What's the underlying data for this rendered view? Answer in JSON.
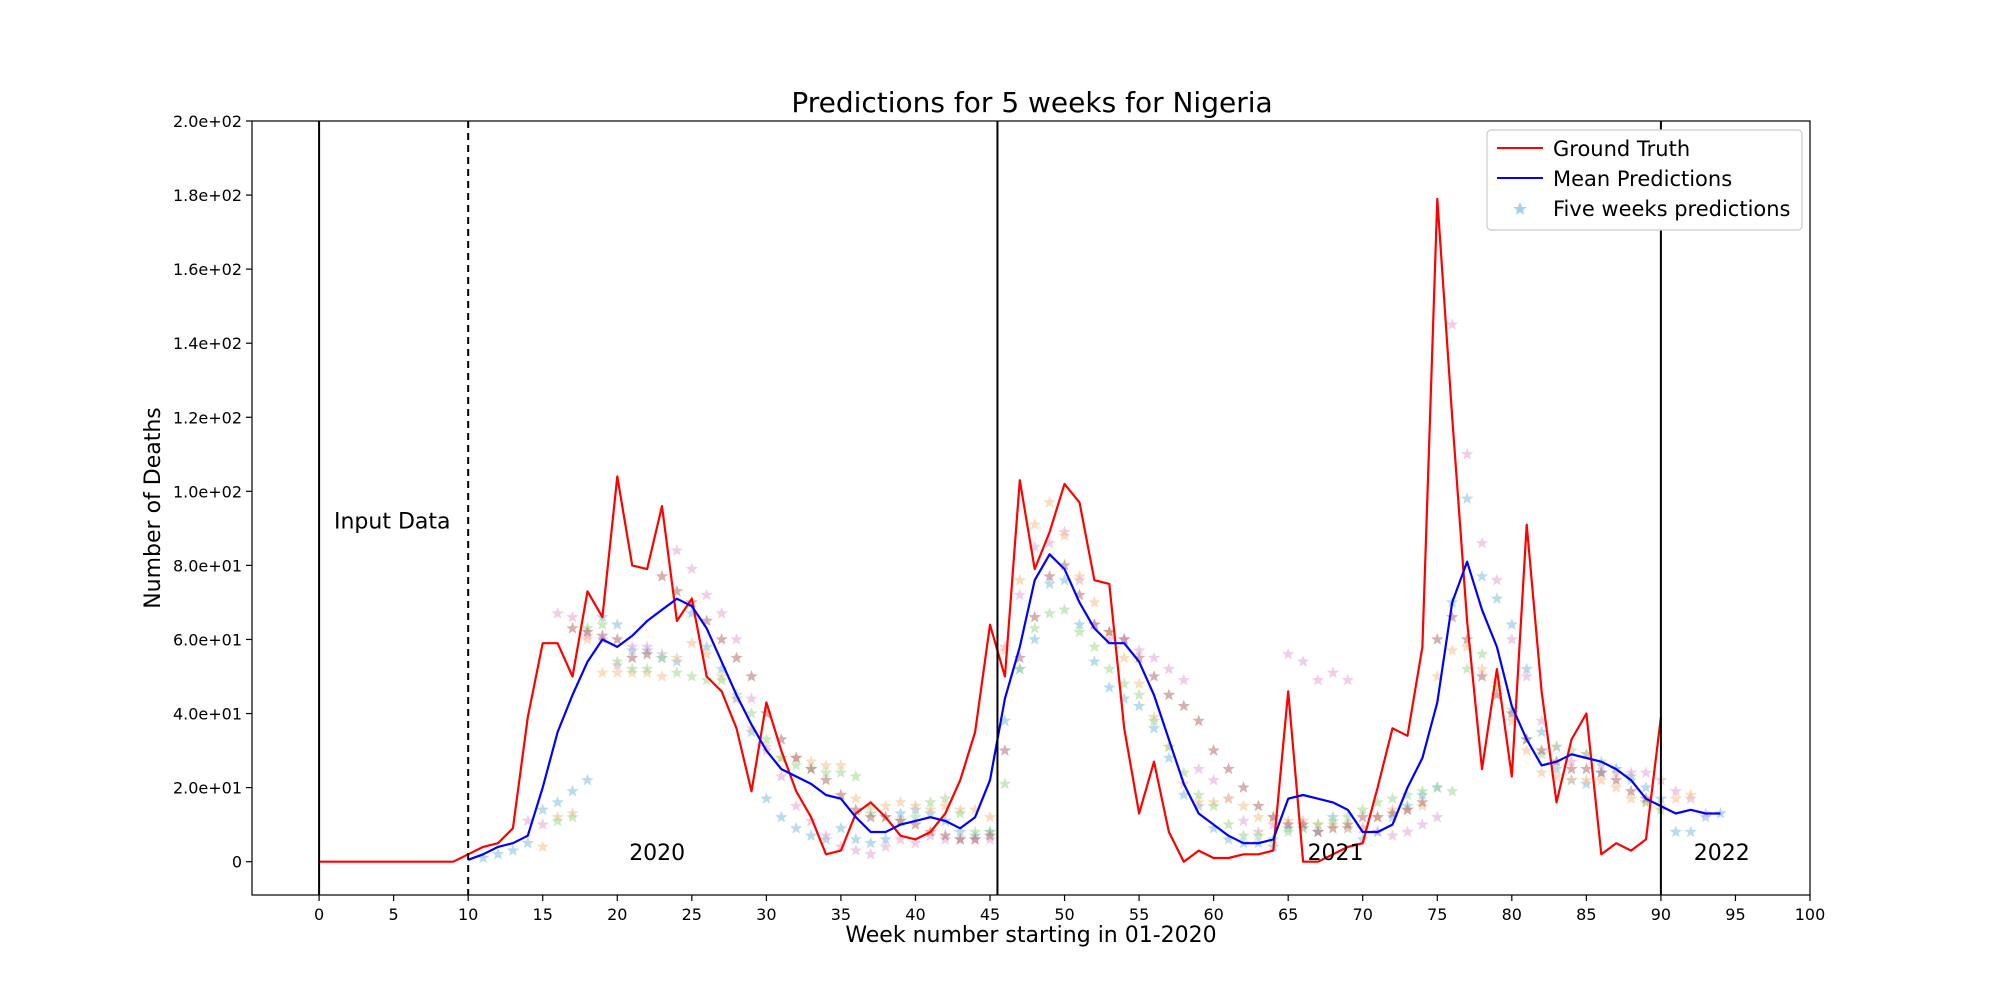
{
  "chart_data": {
    "type": "line",
    "title": "Predictions for 5 weeks for Nigeria",
    "xlabel": "Week number starting in 01-2020",
    "ylabel": "Number of Deaths",
    "xlim": [
      -4.5,
      100
    ],
    "ylim": [
      -9,
      200
    ],
    "xticks": [
      0,
      5,
      10,
      15,
      20,
      25,
      30,
      35,
      40,
      45,
      50,
      55,
      60,
      65,
      70,
      75,
      80,
      85,
      90,
      95,
      100
    ],
    "xtick_labels": [
      "0",
      "5",
      "10",
      "15",
      "20",
      "25",
      "30",
      "35",
      "40",
      "45",
      "50",
      "55",
      "60",
      "65",
      "70",
      "75",
      "80",
      "85",
      "90",
      "95",
      "100"
    ],
    "yticks": [
      0,
      20,
      40,
      60,
      80,
      100,
      120,
      140,
      160,
      180,
      200
    ],
    "ytick_labels": [
      "0",
      "2.0e+01",
      "4.0e+01",
      "6.0e+01",
      "8.0e+01",
      "1.0e+02",
      "1.2e+02",
      "1.4e+02",
      "1.6e+02",
      "1.8e+02",
      "2.0e+02"
    ],
    "grid": false,
    "legend_position": "top-right",
    "vertical_lines": [
      {
        "x": 0,
        "style": "solid"
      },
      {
        "x": 10,
        "style": "dashed"
      },
      {
        "x": 45.5,
        "style": "solid"
      },
      {
        "x": 90,
        "style": "solid"
      }
    ],
    "annotations": [
      {
        "text": "Input Data",
        "x": 1,
        "y": 90
      },
      {
        "text": "2020",
        "x": 20.8,
        "y": 0.5
      },
      {
        "text": "2021",
        "x": 66.3,
        "y": 0.5
      },
      {
        "text": "2022",
        "x": 92.2,
        "y": 0.5
      }
    ],
    "series": [
      {
        "name": "Ground Truth",
        "color": "#ff0000",
        "kind": "line",
        "x": [
          0,
          1,
          2,
          3,
          4,
          5,
          6,
          7,
          8,
          9,
          10,
          11,
          12,
          13,
          14,
          15,
          16,
          17,
          18,
          19,
          20,
          21,
          22,
          23,
          24,
          25,
          26,
          27,
          28,
          29,
          30,
          31,
          32,
          33,
          34,
          35,
          36,
          37,
          38,
          39,
          40,
          41,
          42,
          43,
          44,
          45,
          46,
          47,
          48,
          49,
          50,
          51,
          52,
          53,
          54,
          55,
          56,
          57,
          58,
          59,
          60,
          61,
          62,
          63,
          64,
          65,
          66,
          67,
          68,
          69,
          70,
          71,
          72,
          73,
          74,
          75,
          76,
          77,
          78,
          79,
          80,
          81,
          82,
          83,
          84,
          85,
          86,
          87,
          88,
          89,
          90
        ],
        "y": [
          0,
          0,
          0,
          0,
          0,
          0,
          0,
          0,
          0,
          0,
          2,
          4,
          5,
          9,
          39,
          59,
          59,
          50,
          73,
          66,
          104,
          80,
          79,
          96,
          65,
          71,
          50,
          46,
          36,
          19,
          43,
          30,
          19,
          12,
          2,
          3,
          13,
          16,
          12,
          7,
          6,
          8,
          13,
          22,
          35,
          64,
          50,
          103,
          79,
          89,
          102,
          97,
          76,
          75,
          36,
          13,
          27,
          8,
          0,
          3,
          1,
          1,
          2,
          2,
          3,
          46,
          0,
          0,
          2,
          4,
          5,
          20,
          36,
          34,
          58,
          179,
          120,
          65,
          25,
          52,
          23,
          91,
          46,
          16,
          33,
          40,
          2,
          5,
          3,
          6,
          39
        ]
      },
      {
        "name": "Mean Predictions",
        "color": "#0000ff",
        "kind": "line",
        "x": [
          10,
          11,
          12,
          13,
          14,
          15,
          16,
          17,
          18,
          19,
          20,
          21,
          22,
          23,
          24,
          25,
          26,
          27,
          28,
          29,
          30,
          31,
          32,
          33,
          34,
          35,
          36,
          37,
          38,
          39,
          40,
          41,
          42,
          43,
          44,
          45,
          46,
          47,
          48,
          49,
          50,
          51,
          52,
          53,
          54,
          55,
          56,
          57,
          58,
          59,
          60,
          61,
          62,
          63,
          64,
          65,
          66,
          67,
          68,
          69,
          70,
          71,
          72,
          73,
          74,
          75,
          76,
          77,
          78,
          79,
          80,
          81,
          82,
          83,
          84,
          85,
          86,
          87,
          88,
          89,
          90,
          91,
          92,
          93,
          94
        ],
        "y": [
          0.5,
          2,
          4,
          5,
          7,
          20,
          35,
          45,
          54,
          60,
          58,
          61,
          65,
          68,
          71,
          69,
          63,
          54,
          45,
          37,
          30,
          25,
          23,
          21,
          18,
          17,
          12,
          8,
          8,
          10,
          11,
          12,
          11,
          9,
          12,
          22,
          44,
          58,
          76,
          83,
          79,
          70,
          63,
          59,
          59,
          54,
          45,
          33,
          21,
          13,
          10,
          7,
          5,
          5,
          6,
          17,
          18,
          17,
          16,
          14,
          8,
          8,
          10,
          20,
          28,
          43,
          70,
          81,
          68,
          58,
          42,
          33,
          26,
          27,
          29,
          28,
          27,
          25,
          22,
          17,
          15,
          13,
          14,
          13,
          13
        ]
      },
      {
        "name": "Five weeks predictions",
        "color": "#7fbfdf",
        "kind": "scatter",
        "marker": "star",
        "alpha": 0.55,
        "x": [
          11,
          12,
          13,
          14,
          15,
          16,
          17,
          18,
          19,
          20,
          21,
          22,
          23,
          24,
          25,
          26,
          27,
          28,
          29,
          30,
          31,
          32,
          33,
          34,
          35,
          36,
          37,
          38,
          39,
          40,
          41,
          42,
          43,
          44,
          45,
          46,
          47,
          48,
          49,
          50,
          51,
          52,
          53,
          54,
          55,
          56,
          57,
          58,
          59,
          60,
          61,
          62,
          63,
          64,
          65,
          66,
          67,
          68,
          69,
          70,
          71,
          72,
          73,
          74,
          75,
          76,
          77,
          78,
          79,
          80,
          81,
          82,
          83,
          84,
          85,
          86,
          87,
          88,
          89,
          90,
          91,
          92,
          93,
          94
        ],
        "y": [
          1,
          2,
          3,
          5,
          14,
          16,
          19,
          22,
          66,
          64,
          57,
          57,
          55,
          54,
          67,
          58,
          52,
          44,
          35,
          17,
          12,
          9,
          7,
          6,
          9,
          6,
          5,
          6,
          13,
          14,
          13,
          11,
          8,
          7,
          8,
          38,
          52,
          60,
          75,
          76,
          64,
          54,
          47,
          44,
          42,
          36,
          28,
          18,
          15,
          9,
          6,
          5,
          5,
          4,
          9,
          9,
          8,
          12,
          9,
          6,
          8,
          12,
          15,
          18,
          20,
          70,
          98,
          77,
          71,
          64,
          52,
          35,
          25,
          22,
          21,
          24,
          25,
          23,
          20,
          17,
          8,
          8,
          12,
          13
        ]
      },
      {
        "name": "",
        "color": "#e3a5d6",
        "kind": "scatter",
        "marker": "star",
        "alpha": 0.55,
        "x": [
          14,
          15,
          16,
          17,
          18,
          19,
          20,
          21,
          22,
          23,
          24,
          25,
          26,
          27,
          28,
          29,
          30,
          31,
          32,
          33,
          34,
          35,
          36,
          37,
          38,
          39,
          40,
          41,
          42,
          43,
          44,
          45,
          46,
          47,
          48,
          49,
          50,
          51,
          52,
          53,
          54,
          55,
          56,
          57,
          58,
          59,
          60,
          61,
          62,
          63,
          64,
          65,
          66,
          67,
          68,
          69,
          70,
          71,
          72,
          73,
          74,
          75,
          76,
          77,
          78,
          79,
          80,
          81,
          82,
          83,
          84,
          85,
          86,
          87,
          88,
          89,
          90,
          91,
          92,
          93
        ],
        "y": [
          11,
          10,
          67,
          66,
          61,
          60,
          53,
          58,
          58,
          56,
          84,
          79,
          72,
          67,
          60,
          44,
          30,
          23,
          15,
          11,
          7,
          4,
          3,
          2,
          4,
          6,
          5,
          7,
          6,
          6,
          6,
          6,
          58,
          72,
          85,
          86,
          89,
          76,
          64,
          60,
          60,
          57,
          55,
          52,
          49,
          25,
          22,
          17,
          11,
          8,
          10,
          56,
          54,
          49,
          51,
          49,
          9,
          8,
          7,
          8,
          10,
          12,
          145,
          110,
          86,
          76,
          60,
          50,
          38,
          31,
          27,
          29,
          26,
          24,
          24,
          24,
          22,
          19,
          17,
          13
        ]
      },
      {
        "name": "",
        "color": "#f5c08a",
        "kind": "scatter",
        "marker": "star",
        "alpha": 0.55,
        "x": [
          15,
          16,
          17,
          18,
          19,
          20,
          21,
          22,
          23,
          24,
          25,
          26,
          27,
          28,
          29,
          30,
          31,
          32,
          33,
          34,
          35,
          36,
          37,
          38,
          39,
          40,
          41,
          42,
          43,
          44,
          45,
          46,
          47,
          48,
          49,
          50,
          51,
          52,
          53,
          54,
          55,
          56,
          57,
          58,
          59,
          60,
          61,
          62,
          63,
          64,
          65,
          66,
          67,
          68,
          69,
          70,
          71,
          72,
          73,
          74,
          75,
          76,
          77,
          78,
          79,
          80,
          81,
          82,
          83,
          84,
          85,
          86,
          87,
          88,
          89,
          90,
          91,
          92
        ],
        "y": [
          4,
          12,
          13,
          60,
          51,
          51,
          51,
          51,
          50,
          55,
          59,
          56,
          50,
          44,
          36,
          31,
          28,
          28,
          27,
          26,
          26,
          17,
          15,
          15,
          16,
          15,
          14,
          15,
          14,
          14,
          12,
          57,
          76,
          91,
          97,
          88,
          77,
          70,
          62,
          55,
          48,
          39,
          31,
          21,
          16,
          16,
          17,
          15,
          12,
          12,
          11,
          11,
          10,
          10,
          9,
          9,
          12,
          14,
          14,
          15,
          50,
          57,
          58,
          52,
          48,
          38,
          30,
          24,
          23,
          22,
          22,
          22,
          20,
          17,
          16,
          15,
          17,
          18
        ]
      },
      {
        "name": "",
        "color": "#9fd98f",
        "kind": "scatter",
        "marker": "star",
        "alpha": 0.55,
        "x": [
          16,
          17,
          18,
          19,
          20,
          21,
          22,
          23,
          24,
          25,
          26,
          27,
          28,
          29,
          30,
          31,
          32,
          33,
          34,
          35,
          36,
          37,
          38,
          39,
          40,
          41,
          42,
          43,
          44,
          45,
          46,
          47,
          48,
          49,
          50,
          51,
          52,
          53,
          54,
          55,
          56,
          57,
          58,
          59,
          60,
          61,
          62,
          63,
          64,
          65,
          66,
          67,
          68,
          69,
          70,
          71,
          72,
          73,
          74,
          75,
          76,
          77,
          78,
          79,
          80,
          81,
          82,
          83,
          84,
          85,
          86,
          87,
          88,
          89,
          90
        ],
        "y": [
          11,
          12,
          63,
          64,
          54,
          52,
          52,
          55,
          51,
          50,
          49,
          49,
          45,
          40,
          33,
          28,
          26,
          25,
          24,
          24,
          23,
          13,
          12,
          11,
          12,
          16,
          17,
          13,
          8,
          8,
          21,
          52,
          63,
          67,
          68,
          62,
          58,
          52,
          48,
          45,
          38,
          31,
          24,
          18,
          15,
          10,
          7,
          7,
          6,
          8,
          9,
          10,
          11,
          12,
          14,
          16,
          17,
          18,
          19,
          20,
          19,
          52,
          56,
          47,
          41,
          33,
          29,
          31,
          30,
          29,
          27,
          25,
          22,
          16,
          14
        ]
      },
      {
        "name": "",
        "color": "#b26f6f",
        "kind": "scatter",
        "marker": "star",
        "alpha": 0.55,
        "x": [
          17,
          18,
          19,
          20,
          21,
          22,
          23,
          24,
          25,
          26,
          27,
          28,
          29,
          30,
          31,
          32,
          33,
          34,
          35,
          36,
          37,
          38,
          39,
          40,
          41,
          42,
          43,
          44,
          45,
          46,
          47,
          48,
          49,
          50,
          51,
          52,
          53,
          54,
          55,
          56,
          57,
          58,
          59,
          60,
          61,
          62,
          63,
          64,
          65,
          66,
          67,
          68,
          69,
          70,
          71,
          72,
          73,
          74,
          75,
          76,
          77,
          78,
          79,
          80,
          81,
          82,
          83,
          84,
          85,
          86,
          87,
          88,
          89
        ],
        "y": [
          63,
          62,
          61,
          60,
          55,
          56,
          77,
          73,
          70,
          65,
          60,
          55,
          50,
          40,
          33,
          28,
          25,
          22,
          18,
          14,
          12,
          12,
          11,
          10,
          8,
          7,
          6,
          6,
          7,
          30,
          55,
          66,
          77,
          80,
          72,
          64,
          62,
          60,
          55,
          50,
          45,
          42,
          38,
          30,
          25,
          20,
          15,
          12,
          10,
          10,
          8,
          9,
          10,
          12,
          12,
          13,
          14,
          16,
          60,
          66,
          60,
          50,
          45,
          40,
          33,
          30,
          27,
          25,
          25,
          24,
          22,
          19,
          17
        ]
      }
    ]
  }
}
